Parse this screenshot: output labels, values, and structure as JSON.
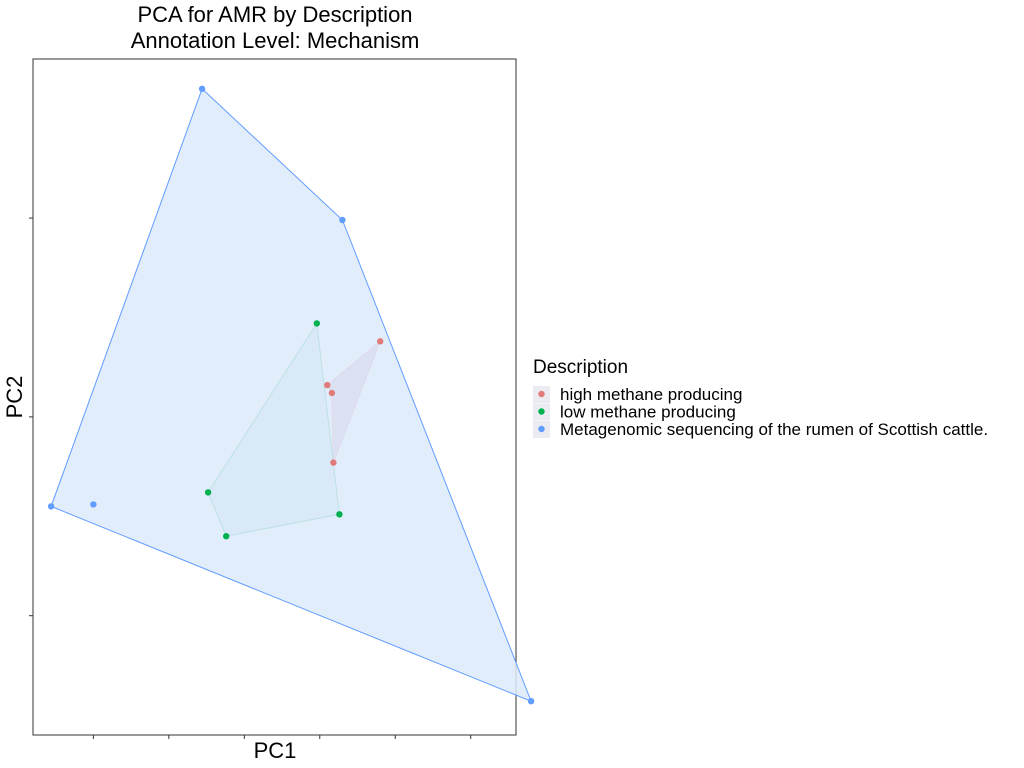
{
  "chart_data": {
    "type": "scatter",
    "title": "PCA for AMR by Description",
    "subtitle": "Annotation Level: Mechanism",
    "xlabel": "PC1",
    "ylabel": "PC2",
    "xlim": [
      -0.9,
      2.3
    ],
    "ylim": [
      -1.6,
      1.8
    ],
    "x_ticks": [
      -0.5,
      0,
      0.5,
      1.0,
      1.5,
      2.0
    ],
    "y_ticks": [
      -1,
      0,
      1
    ],
    "tick_labels_shown": false,
    "grid": false,
    "hulls": true,
    "legend": {
      "title": "Description",
      "position": "right"
    },
    "series": [
      {
        "name": "high methane producing",
        "color": "#E07B7A",
        "fill": "#C9A3B8",
        "points": [
          [
            1.4,
            0.38
          ],
          [
            1.09,
            -0.23
          ],
          [
            1.05,
            0.16
          ],
          [
            1.08,
            0.12
          ]
        ],
        "hull": [
          [
            1.4,
            0.38
          ],
          [
            1.05,
            0.16
          ],
          [
            1.08,
            0.12
          ],
          [
            1.09,
            -0.23
          ]
        ]
      },
      {
        "name": "low methane producing",
        "color": "#00B04E",
        "fill": "#B7DFDB",
        "points": [
          [
            0.98,
            0.47
          ],
          [
            0.26,
            -0.38
          ],
          [
            0.38,
            -0.6
          ],
          [
            1.13,
            -0.49
          ]
        ],
        "hull": [
          [
            0.98,
            0.47
          ],
          [
            0.26,
            -0.38
          ],
          [
            0.38,
            -0.6
          ],
          [
            1.13,
            -0.49
          ]
        ]
      },
      {
        "name": "Metagenomic sequencing of the rumen of Scottish cattle.",
        "color": "#619CFF",
        "fill": "#DDEAFC",
        "points": [
          [
            -0.78,
            -0.45
          ],
          [
            -0.5,
            -0.44
          ],
          [
            0.22,
            1.65
          ],
          [
            1.15,
            0.99
          ],
          [
            2.4,
            -1.43
          ]
        ],
        "hull": [
          [
            0.22,
            1.65
          ],
          [
            -0.78,
            -0.45
          ],
          [
            2.4,
            -1.43
          ],
          [
            1.15,
            0.99
          ]
        ]
      }
    ]
  }
}
